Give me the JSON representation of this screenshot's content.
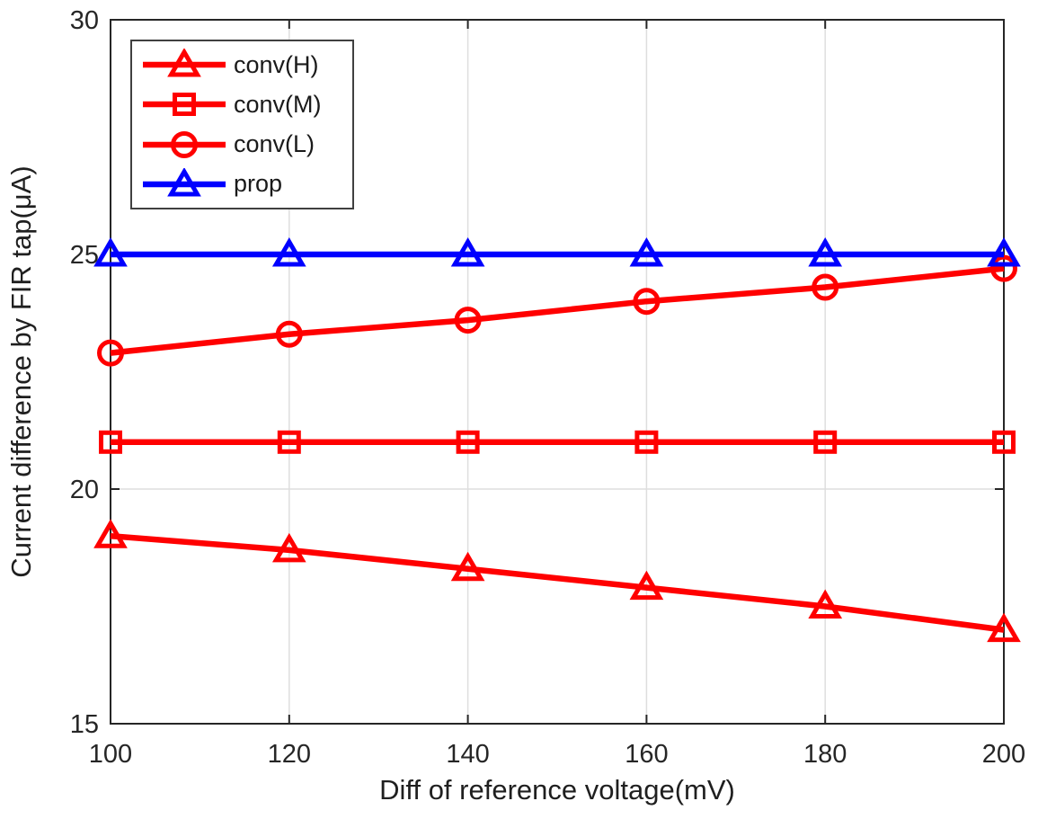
{
  "figure": {
    "background": "#FFFFFF",
    "axis_color": "#262626",
    "grid_color": "#DEDEDE",
    "label_color": "#1F1F1F"
  },
  "chart_data": {
    "type": "line",
    "title": "",
    "xlabel": "Diff of reference voltage(mV)",
    "ylabel": "Current difference by FIR tap(μA)",
    "xlim": [
      100,
      200
    ],
    "ylim": [
      15,
      30
    ],
    "xticks": [
      100,
      120,
      140,
      160,
      180,
      200
    ],
    "yticks": [
      15,
      20,
      25,
      30
    ],
    "grid": true,
    "legend_position": "top-left",
    "x": [
      100,
      120,
      140,
      160,
      180,
      200
    ],
    "series": [
      {
        "name": "conv(H)",
        "color": "#FF0000",
        "marker": "triangle",
        "values": [
          19.0,
          18.7,
          18.3,
          17.9,
          17.5,
          17.0
        ]
      },
      {
        "name": "conv(M)",
        "color": "#FF0000",
        "marker": "square",
        "values": [
          21.0,
          21.0,
          21.0,
          21.0,
          21.0,
          21.0
        ]
      },
      {
        "name": "conv(L)",
        "color": "#FF0000",
        "marker": "circle",
        "values": [
          22.9,
          23.3,
          23.6,
          24.0,
          24.3,
          24.7
        ]
      },
      {
        "name": "prop",
        "color": "#0000FF",
        "marker": "triangle",
        "values": [
          25.0,
          25.0,
          25.0,
          25.0,
          25.0,
          25.0
        ]
      }
    ]
  }
}
